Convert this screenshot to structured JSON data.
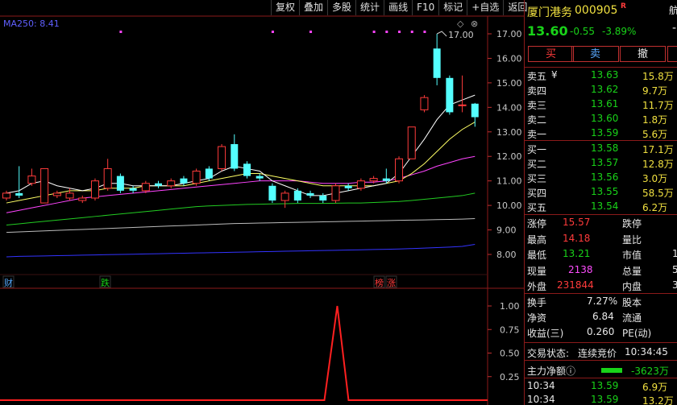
{
  "toolbar": [
    "复权",
    "叠加",
    "多股",
    "统计",
    "画线",
    "F10",
    "标记",
    "+自选",
    "返回"
  ],
  "indicator": {
    "label": "MA250: 8.41"
  },
  "price_axis": [
    "17.00",
    "16.00",
    "15.00",
    "14.00",
    "13.00",
    "12.00",
    "11.00",
    "10.00",
    "9.00",
    "8.00"
  ],
  "high_marker": "17.00",
  "lower_axis": [
    "1.00",
    "0.75",
    "0.50",
    "0.25"
  ],
  "event_tags": {
    "cai": "财",
    "die": "跌",
    "bang": "榜",
    "zhang": "涨"
  },
  "colors": {
    "up": "#ff3b3b",
    "down": "#19d319",
    "candle_down_fill": "#54ffff",
    "ma5": "#ffffff",
    "ma10": "#ffff66",
    "ma20": "#ff44ff",
    "ma60": "#22cc22",
    "ma120": "#bbbbbb",
    "ma250": "#3333ff"
  },
  "chart_data": {
    "type": "candlestick",
    "y_range": [
      7.6,
      17.4
    ],
    "candles": [
      {
        "o": 10.3,
        "c": 10.5,
        "h": 10.6,
        "l": 10.2
      },
      {
        "o": 10.5,
        "c": 10.4,
        "h": 11.6,
        "l": 10.3
      },
      {
        "o": 10.9,
        "c": 11.2,
        "h": 11.5,
        "l": 10.8
      },
      {
        "o": 10.1,
        "c": 11.5,
        "h": 11.5,
        "l": 10.1
      },
      {
        "o": 10.4,
        "c": 10.5,
        "h": 10.6,
        "l": 10.3
      },
      {
        "o": 10.3,
        "c": 10.5,
        "h": 10.7,
        "l": 10.2
      },
      {
        "o": 10.2,
        "c": 10.3,
        "h": 10.4,
        "l": 10.1
      },
      {
        "o": 10.3,
        "c": 11.0,
        "h": 11.1,
        "l": 10.2
      },
      {
        "o": 10.7,
        "c": 11.5,
        "h": 11.9,
        "l": 10.6
      },
      {
        "o": 11.2,
        "c": 10.6,
        "h": 11.3,
        "l": 10.5
      },
      {
        "o": 10.7,
        "c": 10.6,
        "h": 10.8,
        "l": 10.5
      },
      {
        "o": 10.6,
        "c": 10.9,
        "h": 11.0,
        "l": 10.5
      },
      {
        "o": 10.9,
        "c": 10.8,
        "h": 11.0,
        "l": 10.7
      },
      {
        "o": 10.8,
        "c": 11.0,
        "h": 11.1,
        "l": 10.7
      },
      {
        "o": 11.1,
        "c": 10.9,
        "h": 11.2,
        "l": 10.8
      },
      {
        "o": 10.9,
        "c": 11.4,
        "h": 11.5,
        "l": 10.8
      },
      {
        "o": 11.5,
        "c": 11.1,
        "h": 11.6,
        "l": 11.0
      },
      {
        "o": 11.5,
        "c": 12.4,
        "h": 12.5,
        "l": 11.4
      },
      {
        "o": 12.5,
        "c": 11.5,
        "h": 12.9,
        "l": 11.4
      },
      {
        "o": 11.7,
        "c": 11.2,
        "h": 11.8,
        "l": 11.1
      },
      {
        "o": 11.2,
        "c": 11.1,
        "h": 11.3,
        "l": 11.0
      },
      {
        "o": 10.8,
        "c": 10.2,
        "h": 10.9,
        "l": 10.1
      },
      {
        "o": 10.2,
        "c": 10.5,
        "h": 10.6,
        "l": 9.9
      },
      {
        "o": 10.6,
        "c": 10.2,
        "h": 10.7,
        "l": 10.1
      },
      {
        "o": 10.5,
        "c": 10.4,
        "h": 10.6,
        "l": 10.3
      },
      {
        "o": 10.4,
        "c": 10.2,
        "h": 10.5,
        "l": 10.1
      },
      {
        "o": 10.2,
        "c": 10.8,
        "h": 10.9,
        "l": 10.1
      },
      {
        "o": 10.8,
        "c": 10.7,
        "h": 10.9,
        "l": 10.6
      },
      {
        "o": 10.7,
        "c": 11.0,
        "h": 11.1,
        "l": 10.6
      },
      {
        "o": 11.0,
        "c": 11.1,
        "h": 11.2,
        "l": 10.9
      },
      {
        "o": 11.1,
        "c": 11.0,
        "h": 11.5,
        "l": 10.9
      },
      {
        "o": 11.0,
        "c": 11.9,
        "h": 12.0,
        "l": 10.9
      },
      {
        "o": 11.9,
        "c": 13.2,
        "h": 13.2,
        "l": 11.9
      },
      {
        "o": 13.9,
        "c": 14.4,
        "h": 14.5,
        "l": 13.8
      },
      {
        "o": 16.4,
        "c": 15.2,
        "h": 17.0,
        "l": 14.9
      },
      {
        "o": 15.2,
        "c": 13.8,
        "h": 15.3,
        "l": 13.7
      },
      {
        "o": 14.1,
        "c": 14.1,
        "h": 15.3,
        "l": 13.8
      },
      {
        "o": 14.15,
        "c": 13.6,
        "h": 14.18,
        "l": 13.21
      }
    ],
    "ma5": [
      10.5,
      10.6,
      10.9,
      11.0,
      10.8,
      10.7,
      10.6,
      10.7,
      10.9,
      10.9,
      10.8,
      10.8,
      10.8,
      10.8,
      10.9,
      11.0,
      11.1,
      11.4,
      11.6,
      11.5,
      11.4,
      11.0,
      10.8,
      10.6,
      10.4,
      10.4,
      10.5,
      10.6,
      10.7,
      10.8,
      10.9,
      11.3,
      12.0,
      12.7,
      13.5,
      14.1,
      14.3,
      14.5
    ],
    "ma10": [
      10.1,
      10.2,
      10.3,
      10.4,
      10.5,
      10.6,
      10.6,
      10.6,
      10.7,
      10.7,
      10.7,
      10.8,
      10.8,
      10.8,
      10.8,
      10.9,
      11.0,
      11.1,
      11.2,
      11.3,
      11.3,
      11.2,
      11.1,
      11.0,
      10.9,
      10.8,
      10.8,
      10.8,
      10.8,
      10.8,
      10.9,
      11.0,
      11.3,
      11.7,
      12.2,
      12.7,
      13.1,
      13.4
    ],
    "ma20": [
      9.7,
      9.8,
      9.9,
      10.0,
      10.1,
      10.2,
      10.3,
      10.35,
      10.4,
      10.45,
      10.5,
      10.55,
      10.6,
      10.65,
      10.7,
      10.75,
      10.8,
      10.85,
      10.9,
      10.95,
      11.0,
      11.0,
      11.0,
      11.0,
      10.95,
      10.9,
      10.9,
      10.9,
      10.95,
      10.95,
      11.0,
      11.1,
      11.25,
      11.4,
      11.6,
      11.75,
      11.9,
      12.0
    ],
    "ma60": [
      9.2,
      9.25,
      9.3,
      9.35,
      9.4,
      9.45,
      9.5,
      9.55,
      9.6,
      9.65,
      9.7,
      9.75,
      9.8,
      9.85,
      9.9,
      9.95,
      9.98,
      10.0,
      10.02,
      10.04,
      10.05,
      10.06,
      10.07,
      10.08,
      10.08,
      10.08,
      10.09,
      10.1,
      10.1,
      10.12,
      10.14,
      10.16,
      10.2,
      10.25,
      10.3,
      10.35,
      10.4,
      10.5
    ],
    "ma120": [
      8.9,
      8.92,
      8.94,
      8.96,
      8.98,
      9.0,
      9.02,
      9.04,
      9.06,
      9.08,
      9.1,
      9.12,
      9.14,
      9.16,
      9.18,
      9.2,
      9.22,
      9.24,
      9.26,
      9.27,
      9.28,
      9.29,
      9.3,
      9.31,
      9.32,
      9.33,
      9.34,
      9.35,
      9.36,
      9.37,
      9.38,
      9.39,
      9.4,
      9.41,
      9.42,
      9.43,
      9.44,
      9.46
    ],
    "ma250": [
      7.9,
      7.92,
      7.93,
      7.94,
      7.95,
      7.96,
      7.97,
      7.98,
      7.99,
      8.0,
      8.01,
      8.02,
      8.03,
      8.04,
      8.05,
      8.06,
      8.07,
      8.08,
      8.09,
      8.1,
      8.11,
      8.12,
      8.13,
      8.14,
      8.15,
      8.16,
      8.17,
      8.18,
      8.19,
      8.2,
      8.21,
      8.22,
      8.24,
      8.26,
      8.28,
      8.3,
      8.33,
      8.41
    ],
    "signal_markers": [
      9,
      21,
      24,
      29,
      30,
      31,
      32,
      33
    ],
    "lower": {
      "y_range": [
        0,
        1.2
      ],
      "values": [
        0,
        0,
        0,
        0,
        0,
        0,
        0,
        0,
        0,
        0,
        0,
        0,
        0,
        0,
        0,
        0,
        0,
        0,
        0,
        0,
        0,
        0,
        0,
        0,
        0,
        0,
        0,
        0,
        0,
        0,
        0,
        0,
        0,
        0,
        0,
        0,
        0,
        0
      ],
      "spike_index": 26,
      "spike_value": 1.0
    }
  },
  "panel": {
    "name": "厦门港务",
    "code": "000905",
    "r_flag": "R",
    "price": "13.60",
    "change": "-0.55",
    "pct": "-3.89%",
    "corner_text": "航",
    "buttons": [
      "买",
      "卖",
      "撤"
    ],
    "asks": [
      {
        "label": "卖五",
        "mark": "¥",
        "price": "13.63",
        "vol": "15.8万"
      },
      {
        "label": "卖四",
        "mark": "",
        "price": "13.62",
        "vol": "9.7万"
      },
      {
        "label": "卖三",
        "mark": "",
        "price": "13.61",
        "vol": "11.7万"
      },
      {
        "label": "卖二",
        "mark": "",
        "price": "13.60",
        "vol": "1.8万"
      },
      {
        "label": "卖一",
        "mark": "",
        "price": "13.59",
        "vol": "5.6万"
      }
    ],
    "bids": [
      {
        "label": "买一",
        "price": "13.58",
        "vol": "17.1万"
      },
      {
        "label": "买二",
        "price": "13.57",
        "vol": "12.8万"
      },
      {
        "label": "买三",
        "price": "13.56",
        "vol": "3.0万"
      },
      {
        "label": "买四",
        "price": "13.55",
        "vol": "58.5万"
      },
      {
        "label": "买五",
        "price": "13.54",
        "vol": "6.2万"
      }
    ],
    "stats": [
      {
        "l": "涨停",
        "v": "15.57",
        "vc": "red",
        "l2": "跌停",
        "v2": ""
      },
      {
        "l": "最高",
        "v": "14.18",
        "vc": "red",
        "l2": "量比",
        "v2": ""
      },
      {
        "l": "最低",
        "v": "13.21",
        "vc": "green",
        "l2": "市值",
        "v2": "1"
      },
      {
        "l": "现量",
        "v": "2138",
        "vc": "magenta",
        "l2": "总量",
        "v2": "5"
      },
      {
        "l": "外盘",
        "v": "231844",
        "vc": "red",
        "l2": "内盘",
        "v2": "3"
      }
    ],
    "stats2": [
      {
        "l": "换手",
        "v": "7.27%",
        "l2": "股本"
      },
      {
        "l": "净资",
        "v": "6.84",
        "l2": "流通"
      },
      {
        "l": "收益(三)",
        "v": "0.260",
        "l2": "PE(动)"
      }
    ],
    "trade_status": {
      "label": "交易状态:",
      "value": "连续竞价",
      "time": "10:34:45"
    },
    "main_flow": {
      "label": "主力净额",
      "value": "-3623万"
    },
    "ticks": [
      {
        "t": "10:34",
        "p": "13.59",
        "v": "6.9万"
      },
      {
        "t": "10:34",
        "p": "13.59",
        "v": "13.2万"
      }
    ]
  }
}
